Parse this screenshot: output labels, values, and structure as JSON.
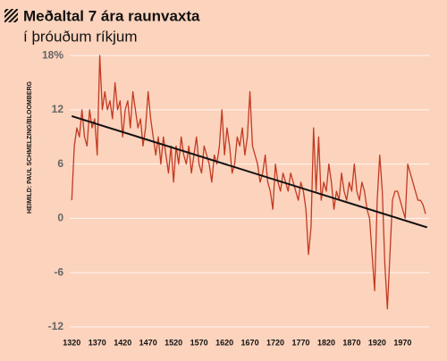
{
  "chart_data": {
    "type": "line",
    "title": "Meðaltal 7 ára raunvaxta",
    "subtitle": "í þróuðum ríkjum",
    "source": "HEIMILD: PAUL SCHMELZING/BLOOMBERG",
    "xlim": [
      1316,
      2022
    ],
    "ylim": [
      -13.2,
      19
    ],
    "xticks": [
      1320,
      1370,
      1420,
      1470,
      1520,
      1570,
      1620,
      1670,
      1720,
      1770,
      1820,
      1870,
      1920,
      1970
    ],
    "yticks": [
      -12,
      -6,
      0,
      6,
      12,
      {
        "value": 18,
        "label": "18%"
      }
    ],
    "grid": true,
    "series": [
      {
        "color": "#c23a22",
        "x": [
          1320,
          1325,
          1330,
          1335,
          1340,
          1345,
          1350,
          1355,
          1360,
          1365,
          1370,
          1375,
          1380,
          1385,
          1390,
          1395,
          1400,
          1405,
          1410,
          1415,
          1420,
          1425,
          1430,
          1435,
          1440,
          1445,
          1450,
          1455,
          1460,
          1465,
          1470,
          1475,
          1480,
          1485,
          1490,
          1495,
          1500,
          1505,
          1510,
          1515,
          1520,
          1525,
          1530,
          1535,
          1540,
          1545,
          1550,
          1555,
          1560,
          1565,
          1570,
          1575,
          1580,
          1585,
          1590,
          1595,
          1600,
          1605,
          1610,
          1615,
          1620,
          1625,
          1630,
          1635,
          1640,
          1645,
          1650,
          1655,
          1660,
          1665,
          1670,
          1675,
          1680,
          1685,
          1690,
          1695,
          1700,
          1705,
          1710,
          1715,
          1720,
          1725,
          1730,
          1735,
          1740,
          1745,
          1750,
          1755,
          1760,
          1765,
          1770,
          1775,
          1780,
          1785,
          1790,
          1795,
          1800,
          1805,
          1810,
          1815,
          1820,
          1825,
          1830,
          1835,
          1840,
          1845,
          1850,
          1855,
          1860,
          1865,
          1870,
          1875,
          1880,
          1885,
          1890,
          1895,
          1900,
          1905,
          1910,
          1915,
          1920,
          1925,
          1930,
          1935,
          1940,
          1945,
          1950,
          1955,
          1960,
          1965,
          1970,
          1975,
          1980,
          1985,
          1990,
          1995,
          2000,
          2005,
          2010,
          2015
        ],
        "values": [
          2,
          8,
          10,
          9,
          12,
          9,
          8,
          12,
          10,
          11,
          7,
          18,
          12,
          14,
          12,
          13,
          11,
          15,
          12,
          13,
          9,
          12,
          13,
          10,
          14,
          12,
          10,
          11,
          8,
          10,
          14,
          11,
          9,
          7,
          9,
          6,
          9,
          7,
          5,
          8,
          4,
          8,
          6,
          9,
          7,
          6,
          8,
          5,
          7,
          9,
          6,
          5,
          8,
          7,
          6,
          4,
          7,
          6,
          8,
          12,
          7,
          10,
          8,
          5,
          6,
          9,
          8,
          10,
          7,
          9,
          14,
          8,
          7,
          6,
          4,
          5,
          7,
          4,
          3,
          1,
          6,
          4,
          3,
          5,
          4,
          3,
          5,
          4,
          3,
          2,
          4,
          3,
          1,
          -4,
          -1,
          10,
          3,
          9,
          2,
          4,
          3,
          6,
          4,
          1,
          3,
          2,
          5,
          3,
          2,
          4,
          3,
          6,
          3,
          2,
          4,
          3,
          1,
          0,
          -4,
          -8,
          2,
          7,
          3,
          -5,
          -10,
          -4,
          2,
          3,
          3,
          2,
          1,
          0,
          6,
          5,
          4,
          3,
          2,
          2,
          1.5,
          0.5
        ]
      },
      {
        "color": "#111111",
        "x": [
          1320,
          2018
        ],
        "values": [
          11.3,
          -1.0
        ]
      }
    ]
  }
}
